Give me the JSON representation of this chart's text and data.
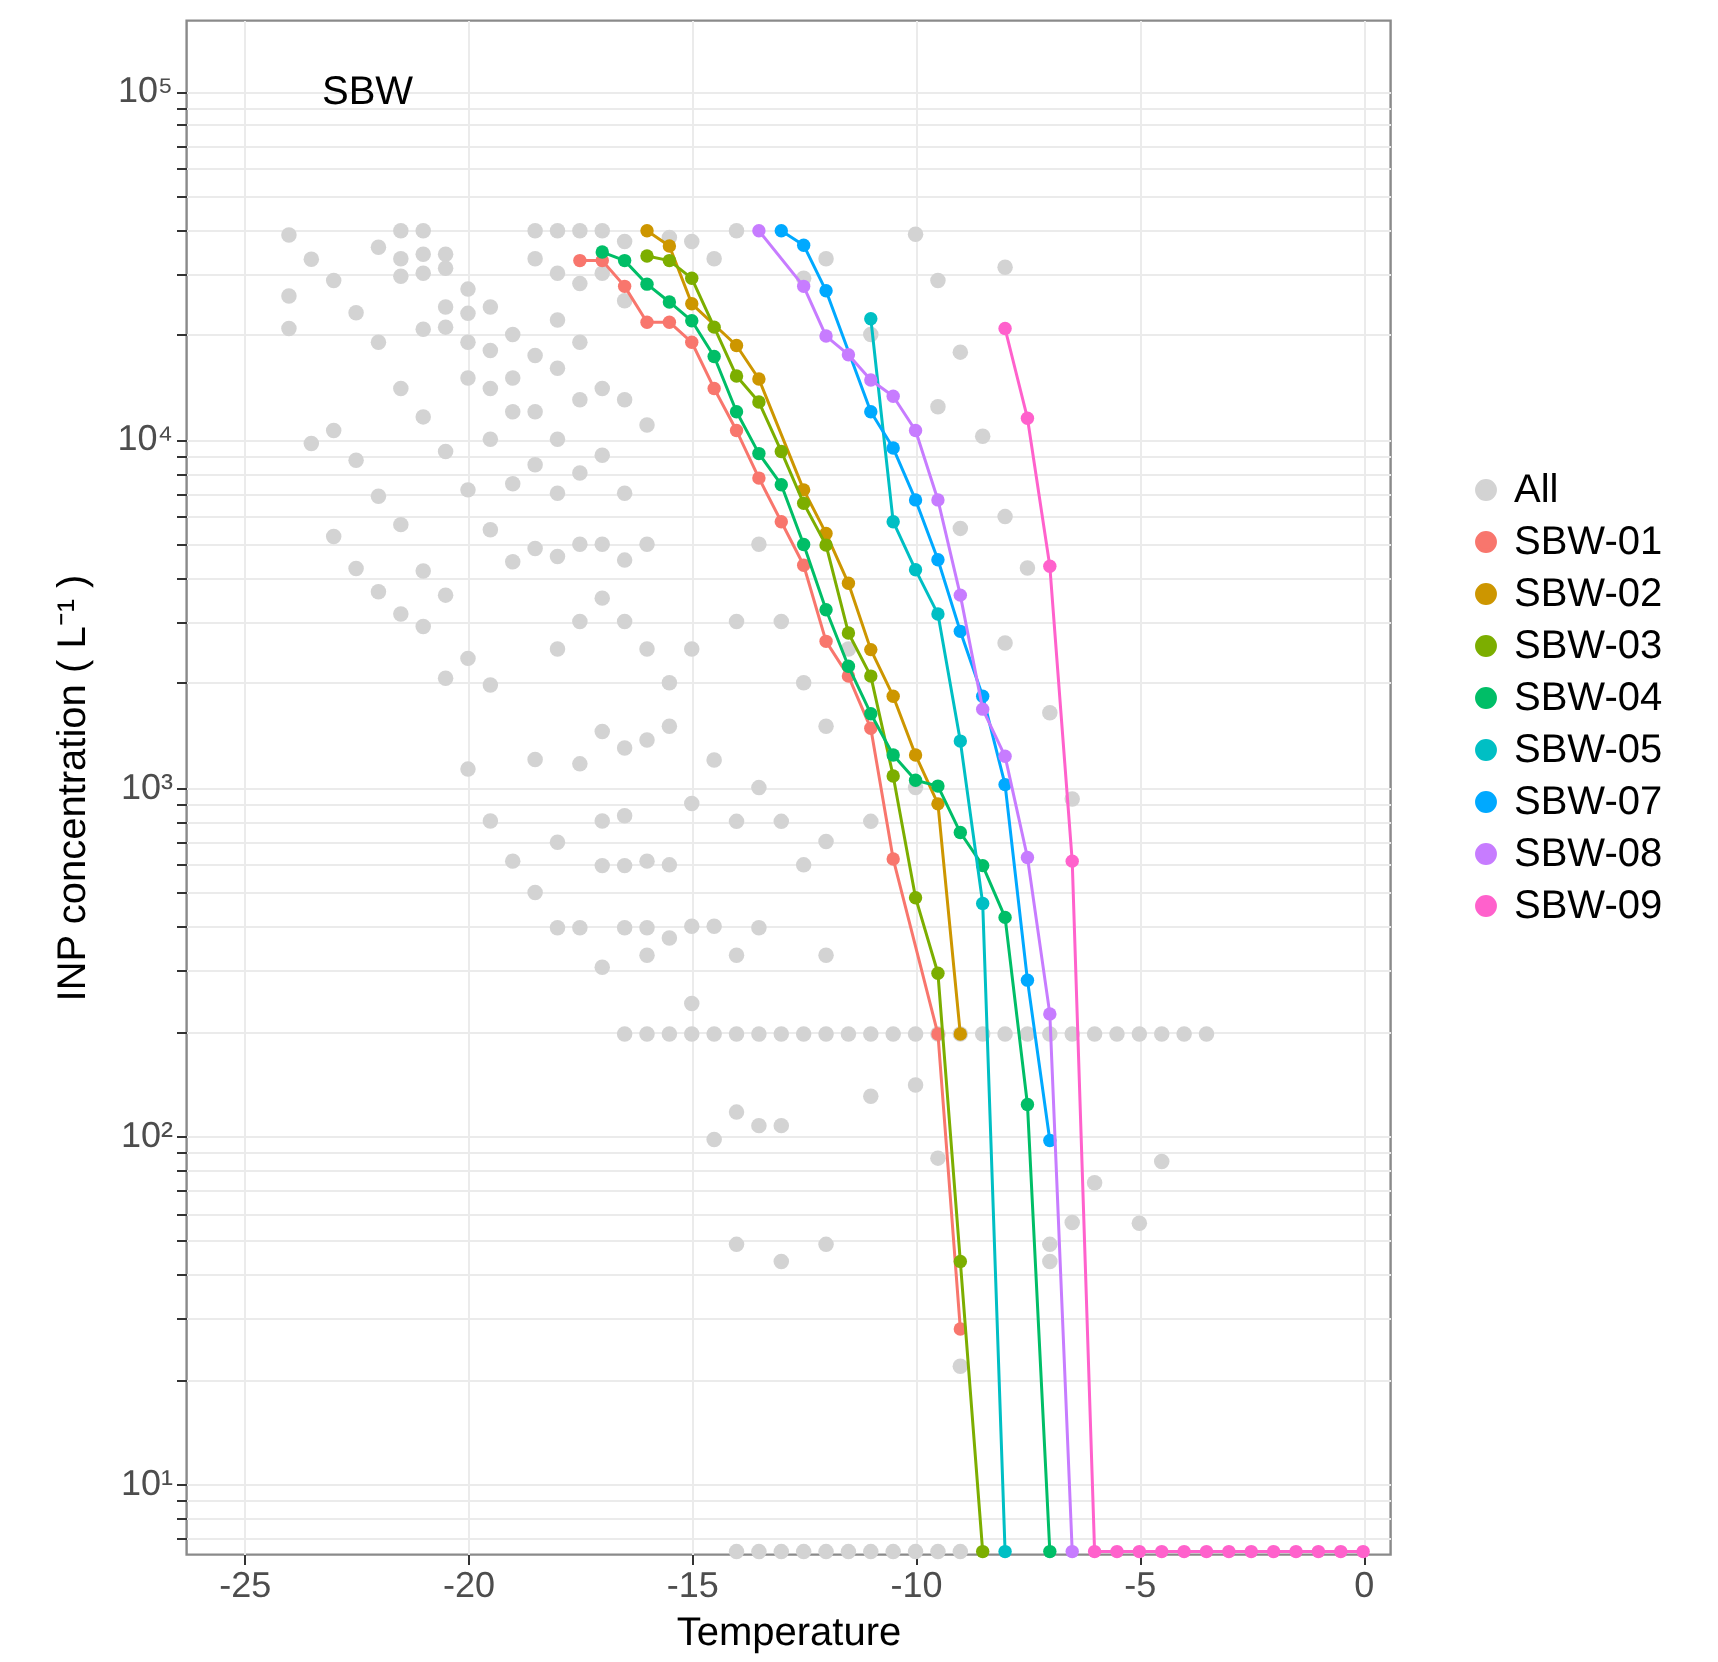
{
  "chart_data": {
    "type": "line",
    "xlabel": "Temperature",
    "ylabel": "INP  concentration ( L⁻¹ )",
    "annotations": [
      "SBW"
    ],
    "log": true,
    "grid": true,
    "legend": "right",
    "marker": "circle",
    "xlim": [
      -26.3,
      0.6
    ],
    "xticks": [
      -25,
      -20,
      -15,
      -10,
      -5,
      0
    ],
    "ylim": [
      6.3,
      160000
    ],
    "yticks": [
      {
        "value": 7,
        "label": null
      },
      {
        "value": 8,
        "label": null
      },
      {
        "value": 9,
        "label": null
      },
      {
        "value": 10,
        "label": "10¹"
      },
      {
        "value": 20,
        "label": null
      },
      {
        "value": 30,
        "label": null
      },
      {
        "value": 40,
        "label": null
      },
      {
        "value": 50,
        "label": null
      },
      {
        "value": 60,
        "label": null
      },
      {
        "value": 70,
        "label": null
      },
      {
        "value": 80,
        "label": null
      },
      {
        "value": 90,
        "label": null
      },
      {
        "value": 100,
        "label": "10²"
      },
      {
        "value": 200,
        "label": null
      },
      {
        "value": 300,
        "label": null
      },
      {
        "value": 400,
        "label": null
      },
      {
        "value": 500,
        "label": null
      },
      {
        "value": 600,
        "label": null
      },
      {
        "value": 700,
        "label": null
      },
      {
        "value": 800,
        "label": null
      },
      {
        "value": 900,
        "label": null
      },
      {
        "value": 1000,
        "label": "10³"
      },
      {
        "value": 2000,
        "label": null
      },
      {
        "value": 3000,
        "label": null
      },
      {
        "value": 4000,
        "label": null
      },
      {
        "value": 5000,
        "label": null
      },
      {
        "value": 6000,
        "label": null
      },
      {
        "value": 7000,
        "label": null
      },
      {
        "value": 8000,
        "label": null
      },
      {
        "value": 9000,
        "label": null
      },
      {
        "value": 10000,
        "label": "10⁴"
      },
      {
        "value": 20000,
        "label": null
      },
      {
        "value": 30000,
        "label": null
      },
      {
        "value": 40000,
        "label": null
      },
      {
        "value": 50000,
        "label": null
      },
      {
        "value": 60000,
        "label": null
      },
      {
        "value": 70000,
        "label": null
      },
      {
        "value": 80000,
        "label": null
      },
      {
        "value": 90000,
        "label": null
      },
      {
        "value": 100000,
        "label": "10⁵"
      }
    ],
    "series": [
      {
        "name": "All",
        "type": "scatter",
        "color": "#d3d3d3",
        "x": [
          -24,
          -24,
          -24,
          -23.5,
          -23.5,
          -23,
          -23,
          -23,
          -22.5,
          -22.5,
          -22.5,
          -22,
          -22,
          -22,
          -22,
          -21.5,
          -21.5,
          -21.5,
          -21.5,
          -21.5,
          -21.5,
          -21,
          -21,
          -21,
          -21,
          -21,
          -21,
          -21,
          -20.5,
          -20.5,
          -20.5,
          -20.5,
          -20.5,
          -20.5,
          -20.5,
          -20,
          -20,
          -20,
          -20,
          -20,
          -20,
          -20,
          -19.5,
          -19.5,
          -19.5,
          -19.5,
          -19.5,
          -19.5,
          -19.5,
          -19,
          -19,
          -19,
          -19,
          -19,
          -19,
          -18.5,
          -18.5,
          -18.5,
          -18.5,
          -18.5,
          -18.5,
          -18.5,
          -18.5,
          -18,
          -18,
          -18,
          -18,
          -18,
          -18,
          -18,
          -18,
          -18,
          -18,
          -17.5,
          -17.5,
          -17.5,
          -17.5,
          -17.5,
          -17.5,
          -17.5,
          -17.5,
          -17.5,
          -17,
          -17,
          -17,
          -17,
          -17,
          -17,
          -17,
          -17,
          -17,
          -17,
          -16.5,
          -16.5,
          -16.5,
          -16.5,
          -16.5,
          -16.5,
          -16.5,
          -16.5,
          -16.5,
          -16.5,
          -16.5,
          -16,
          -16,
          -16,
          -16,
          -16,
          -16,
          -16,
          -16,
          -15.5,
          -15.5,
          -15.5,
          -15.5,
          -15.5,
          -15.5,
          -15,
          -15,
          -15,
          -15,
          -15,
          -15,
          -14.5,
          -14.5,
          -14.5,
          -14.5,
          -14.5,
          -14,
          -14,
          -14,
          -14,
          -14,
          -14,
          -14,
          -14,
          -13.5,
          -13.5,
          -13.5,
          -13.5,
          -13.5,
          -13.5,
          -13,
          -13,
          -13,
          -13,
          -13,
          -13,
          -12.5,
          -12.5,
          -12.5,
          -12.5,
          -12.5,
          -12,
          -12,
          -12,
          -12,
          -12,
          -12,
          -12,
          -11.5,
          -11.5,
          -11.5,
          -11,
          -11,
          -11,
          -11,
          -11,
          -10.5,
          -10.5,
          -10,
          -10,
          -10,
          -10,
          -10,
          -9.5,
          -9.5,
          -9.5,
          -9.5,
          -9.5,
          -9,
          -9,
          -9,
          -9,
          -9,
          -8.5,
          -8.5,
          -8,
          -8,
          -8,
          -8,
          -7.5,
          -7.5,
          -7,
          -7,
          -7,
          -7,
          -6.5,
          -6.5,
          -6.5,
          -6,
          -6,
          -5.5,
          -5,
          -5,
          -4.5,
          -4.5,
          -4,
          -3.5
        ],
        "values": [
          38600,
          25800,
          20800,
          32900,
          9730,
          28600,
          10600,
          5260,
          23100,
          8710,
          4260,
          35600,
          19000,
          6860,
          3650,
          39700,
          33000,
          29400,
          14000,
          5690,
          3150,
          39700,
          34000,
          30000,
          20700,
          11600,
          4190,
          2900,
          34000,
          31000,
          24000,
          21000,
          9230,
          3570,
          2060,
          27000,
          23000,
          19000,
          15000,
          7160,
          2350,
          1130,
          24000,
          18000,
          14000,
          10000,
          5500,
          1970,
          802,
          20000,
          15000,
          12000,
          7460,
          4450,
          615,
          39700,
          33000,
          17400,
          12000,
          8450,
          4860,
          1205,
          500,
          39700,
          30000,
          22000,
          16000,
          10000,
          7000,
          4610,
          2500,
          697,
          396,
          39700,
          28000,
          19000,
          13000,
          8000,
          5000,
          3000,
          1170,
          396,
          39700,
          30000,
          14000,
          9000,
          5000,
          3500,
          1450,
          802,
          597,
          305,
          37000,
          25000,
          13000,
          7000,
          4500,
          3000,
          1300,
          830,
          597,
          396,
          196,
          11000,
          5000,
          2500,
          1370,
          615,
          396,
          330,
          196,
          38000,
          2000,
          1500,
          600,
          370,
          196,
          37000,
          2500,
          900,
          400,
          240,
          196,
          33000,
          1200,
          400,
          196,
          97.6,
          39700,
          3000,
          800,
          330,
          196,
          117,
          48.8,
          6.4,
          5000,
          1000,
          396,
          196,
          107,
          6.4,
          3000,
          800,
          196,
          107,
          43.6,
          6.4,
          29000,
          2000,
          600,
          196,
          6.4,
          33000,
          1500,
          700,
          330,
          196,
          48.8,
          6.4,
          2500,
          196,
          6.4,
          20000,
          800,
          196,
          130,
          6.4,
          196,
          6.4,
          38800,
          1000,
          140,
          196,
          6.4,
          28600,
          12400,
          196,
          86.3,
          6.4,
          17800,
          5550,
          196,
          21.8,
          6.4,
          10200,
          196,
          31200,
          6000,
          2600,
          196,
          4270,
          196,
          1640,
          196,
          48.8,
          43.6,
          927,
          196,
          56.4,
          196,
          73.3,
          196,
          196,
          56.1,
          196,
          84.4,
          196,
          196
        ]
      },
      {
        "name": "SBW-01",
        "color": "#f8766d",
        "x": [
          -17.5,
          -17,
          -16.5,
          -16,
          -15.5,
          -15,
          -14.5,
          -14,
          -13.5,
          -13,
          -12.5,
          -12,
          -11.5,
          -11,
          -10.5,
          -9.5,
          -9
        ],
        "values": [
          32600,
          32600,
          27500,
          21700,
          21700,
          19000,
          14000,
          10600,
          7740,
          5800,
          4350,
          2630,
          2090,
          1480,
          624,
          196,
          27.9
        ]
      },
      {
        "name": "SBW-02",
        "color": "#cd9600",
        "x": [
          -16,
          -15.5,
          -15,
          -14,
          -13.5,
          -12.5,
          -12,
          -11.5,
          -11,
          -10.5,
          -10,
          -9.5,
          -9
        ],
        "values": [
          39700,
          35900,
          24500,
          18600,
          14900,
          7160,
          5370,
          3860,
          2490,
          1830,
          1240,
          898,
          196
        ]
      },
      {
        "name": "SBW-03",
        "color": "#7cae00",
        "x": [
          -16,
          -15.5,
          -15,
          -14.5,
          -14,
          -13.5,
          -13,
          -12.5,
          -12,
          -11.5,
          -11,
          -10.5,
          -10,
          -9.5,
          -9,
          -8.5
        ],
        "values": [
          33600,
          32600,
          29000,
          21000,
          15200,
          12800,
          9230,
          6550,
          4970,
          2780,
          2090,
          1080,
          483,
          293,
          43.6,
          6.4
        ]
      },
      {
        "name": "SBW-04",
        "color": "#00be67",
        "x": [
          -17,
          -16.5,
          -16,
          -15.5,
          -15,
          -14.5,
          -14,
          -13.5,
          -13,
          -12.5,
          -12,
          -11.5,
          -11,
          -10.5,
          -10,
          -9.5,
          -9,
          -8.5,
          -8,
          -7.5,
          -7
        ],
        "values": [
          34500,
          32600,
          27900,
          24800,
          21900,
          17300,
          12000,
          9100,
          7410,
          4990,
          3240,
          2230,
          1630,
          1240,
          1050,
          1010,
          743,
          597,
          424,
          123,
          6.4
        ]
      },
      {
        "name": "SBW-05",
        "color": "#00bfc4",
        "x": [
          -11,
          -10.5,
          -10,
          -9.5,
          -9,
          -8.5,
          -8
        ],
        "values": [
          22200,
          5800,
          4220,
          3150,
          1360,
          465,
          6.4
        ]
      },
      {
        "name": "SBW-07",
        "color": "#00a9ff",
        "x": [
          -13,
          -12.5,
          -12,
          -11,
          -10.5,
          -10,
          -9.5,
          -9,
          -8.5,
          -8,
          -7.5,
          -7
        ],
        "values": [
          39700,
          36100,
          26700,
          12000,
          9440,
          6700,
          4510,
          2810,
          1830,
          1020,
          280,
          97
        ]
      },
      {
        "name": "SBW-08",
        "color": "#c77cff",
        "x": [
          -13.5,
          -12.5,
          -12,
          -11.5,
          -11,
          -10.5,
          -10,
          -9.5,
          -9,
          -8.5,
          -8,
          -7.5,
          -7,
          -6.5
        ],
        "values": [
          39700,
          27500,
          19800,
          17500,
          14800,
          13300,
          10600,
          6700,
          3570,
          1680,
          1230,
          630,
          224,
          6.4
        ]
      },
      {
        "name": "SBW-09",
        "color": "#ff61cc",
        "x": [
          -8,
          -7.5,
          -7,
          -6.5,
          -6,
          -5.5,
          -5,
          -4.5,
          -4,
          -3.5,
          -3,
          -2.5,
          -2,
          -1.5,
          -1,
          -0.5,
          0
        ],
        "values": [
          20800,
          11500,
          4320,
          615,
          6.4,
          6.4,
          6.4,
          6.4,
          6.4,
          6.4,
          6.4,
          6.4,
          6.4,
          6.4,
          6.4,
          6.4,
          6.4
        ]
      }
    ]
  }
}
